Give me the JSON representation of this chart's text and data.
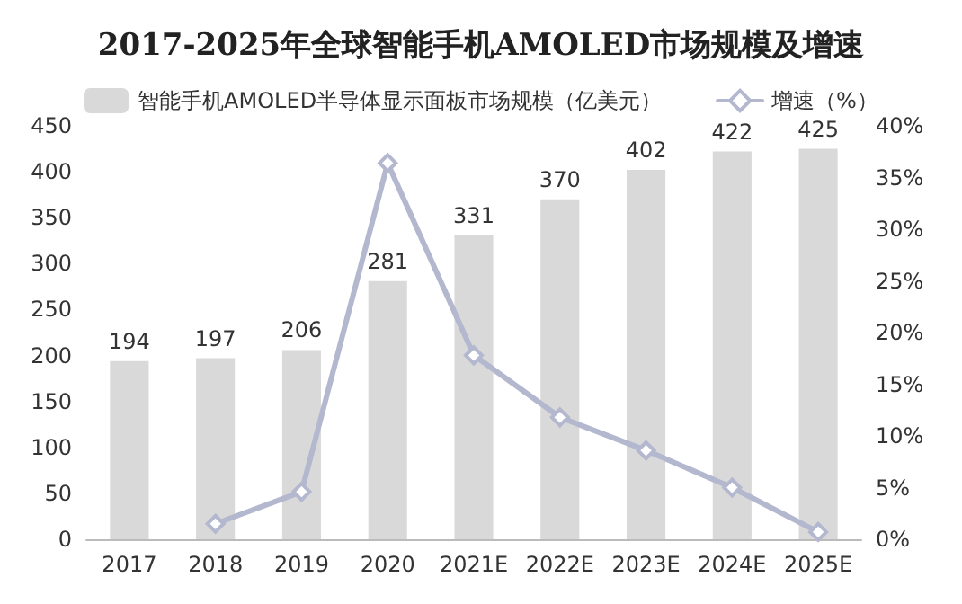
{
  "chart_data": {
    "type": "bar",
    "title": "2017-2025年全球智能手机AMOLED市场规模及增速",
    "categories": [
      "2017",
      "2018",
      "2019",
      "2020",
      "2021E",
      "2022E",
      "2023E",
      "2024E",
      "2025E"
    ],
    "series": [
      {
        "name": "智能手机AMOLED半导体显示面板市场规模（亿美元）",
        "color": "#d9d9d9",
        "values": [
          194,
          197,
          206,
          281,
          331,
          370,
          402,
          422,
          425
        ],
        "data_labels": true
      },
      {
        "name": "增速（%）",
        "type": "line",
        "axis": "y2",
        "color": "#b4b8cf",
        "marker": "diamond",
        "values": [
          null,
          1.5,
          4.6,
          36.4,
          17.8,
          11.8,
          8.6,
          5.0,
          0.7
        ]
      }
    ],
    "ylim": [
      0,
      450
    ],
    "yticks": [
      0,
      50,
      100,
      150,
      200,
      250,
      300,
      350,
      400,
      450
    ],
    "y2lim": [
      0,
      40
    ],
    "y2ticks": [
      {
        "value": 0,
        "label": "0%"
      },
      {
        "value": 5,
        "label": "5%"
      },
      {
        "value": 10,
        "label": "10%"
      },
      {
        "value": 15,
        "label": "15%"
      },
      {
        "value": 20,
        "label": "20%"
      },
      {
        "value": 25,
        "label": "25%"
      },
      {
        "value": 30,
        "label": "30%"
      },
      {
        "value": 35,
        "label": "35%"
      },
      {
        "value": 40,
        "label": "40%"
      }
    ],
    "grid": false,
    "legend": "top"
  }
}
